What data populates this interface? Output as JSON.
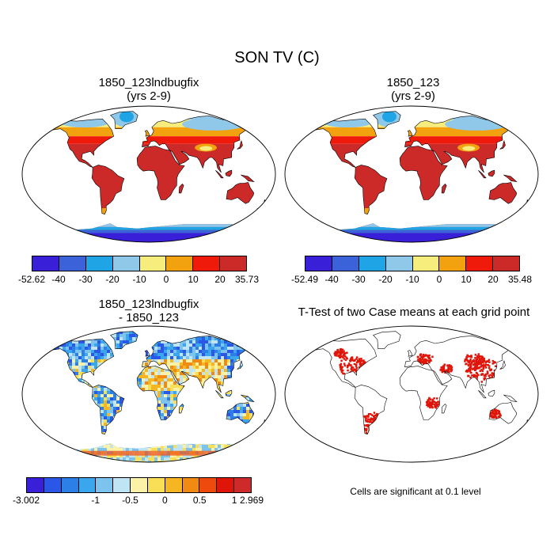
{
  "figure": {
    "title": "SON TV (C)"
  },
  "panels": [
    {
      "title_line1": "1850_123lndbugfix",
      "title_line2": "(yrs 2-9)",
      "colorbar_labels": [
        "-52.62",
        "-40",
        "-30",
        "-20",
        "-10",
        "0",
        "10",
        "20",
        "35.73"
      ],
      "colorbar_colors": [
        "#3a1fd8",
        "#3b62d9",
        "#1fa4e6",
        "#8fc8e8",
        "#f7ed7d",
        "#f2a20f",
        "#f01a0a",
        "#cc2929"
      ]
    },
    {
      "title_line1": "1850_123",
      "title_line2": "(yrs 2-9)",
      "colorbar_labels": [
        "-52.49",
        "-40",
        "-30",
        "-20",
        "-10",
        "0",
        "10",
        "20",
        "35.48"
      ],
      "colorbar_colors": [
        "#3a1fd8",
        "#3b62d9",
        "#1fa4e6",
        "#8fc8e8",
        "#f7ed7d",
        "#f2a20f",
        "#f01a0a",
        "#cc2929"
      ]
    },
    {
      "title_line1": "1850_123lndbugfix",
      "title_line2": "- 1850_123",
      "colorbar_labels": [
        "-3.002",
        "-1",
        "-0.5",
        "0",
        "0.5",
        "1",
        "2.969"
      ],
      "colorbar_colors": [
        "#3a1fd8",
        "#2b57e8",
        "#2c7fe6",
        "#3aa7ec",
        "#7cc4ee",
        "#bfe4f4",
        "#fbf2a8",
        "#f8df55",
        "#f5b622",
        "#f08a12",
        "#ee4a0e",
        "#e01509",
        "#cf2a2a"
      ]
    },
    {
      "title_line1": "T-Test of two Case means at each grid point",
      "note": "Cells are significant at 0.1 level"
    }
  ],
  "chart_data": [
    {
      "type": "heatmap",
      "title": "1850_123lndbugfix (yrs 2-9)",
      "variable": "SON TV (C)",
      "range": [
        -52.62,
        35.73
      ],
      "contour_levels": [
        -40,
        -30,
        -20,
        -10,
        0,
        10,
        20
      ],
      "projection": "Robinson"
    },
    {
      "type": "heatmap",
      "title": "1850_123 (yrs 2-9)",
      "variable": "SON TV (C)",
      "range": [
        -52.49,
        35.48
      ],
      "contour_levels": [
        -40,
        -30,
        -20,
        -10,
        0,
        10,
        20
      ],
      "projection": "Robinson"
    },
    {
      "type": "heatmap",
      "title": "1850_123lndbugfix - 1850_123",
      "range": [
        -3.002,
        2.969
      ],
      "colorbar_tick_labels": [
        "-3.002",
        "-1",
        "-0.5",
        "0",
        "0.5",
        "1",
        "2.969"
      ],
      "projection": "Robinson"
    },
    {
      "type": "heatmap",
      "title": "T-Test of two Case means at each grid point",
      "note": "Cells are significant at 0.1 level",
      "projection": "Robinson"
    }
  ]
}
